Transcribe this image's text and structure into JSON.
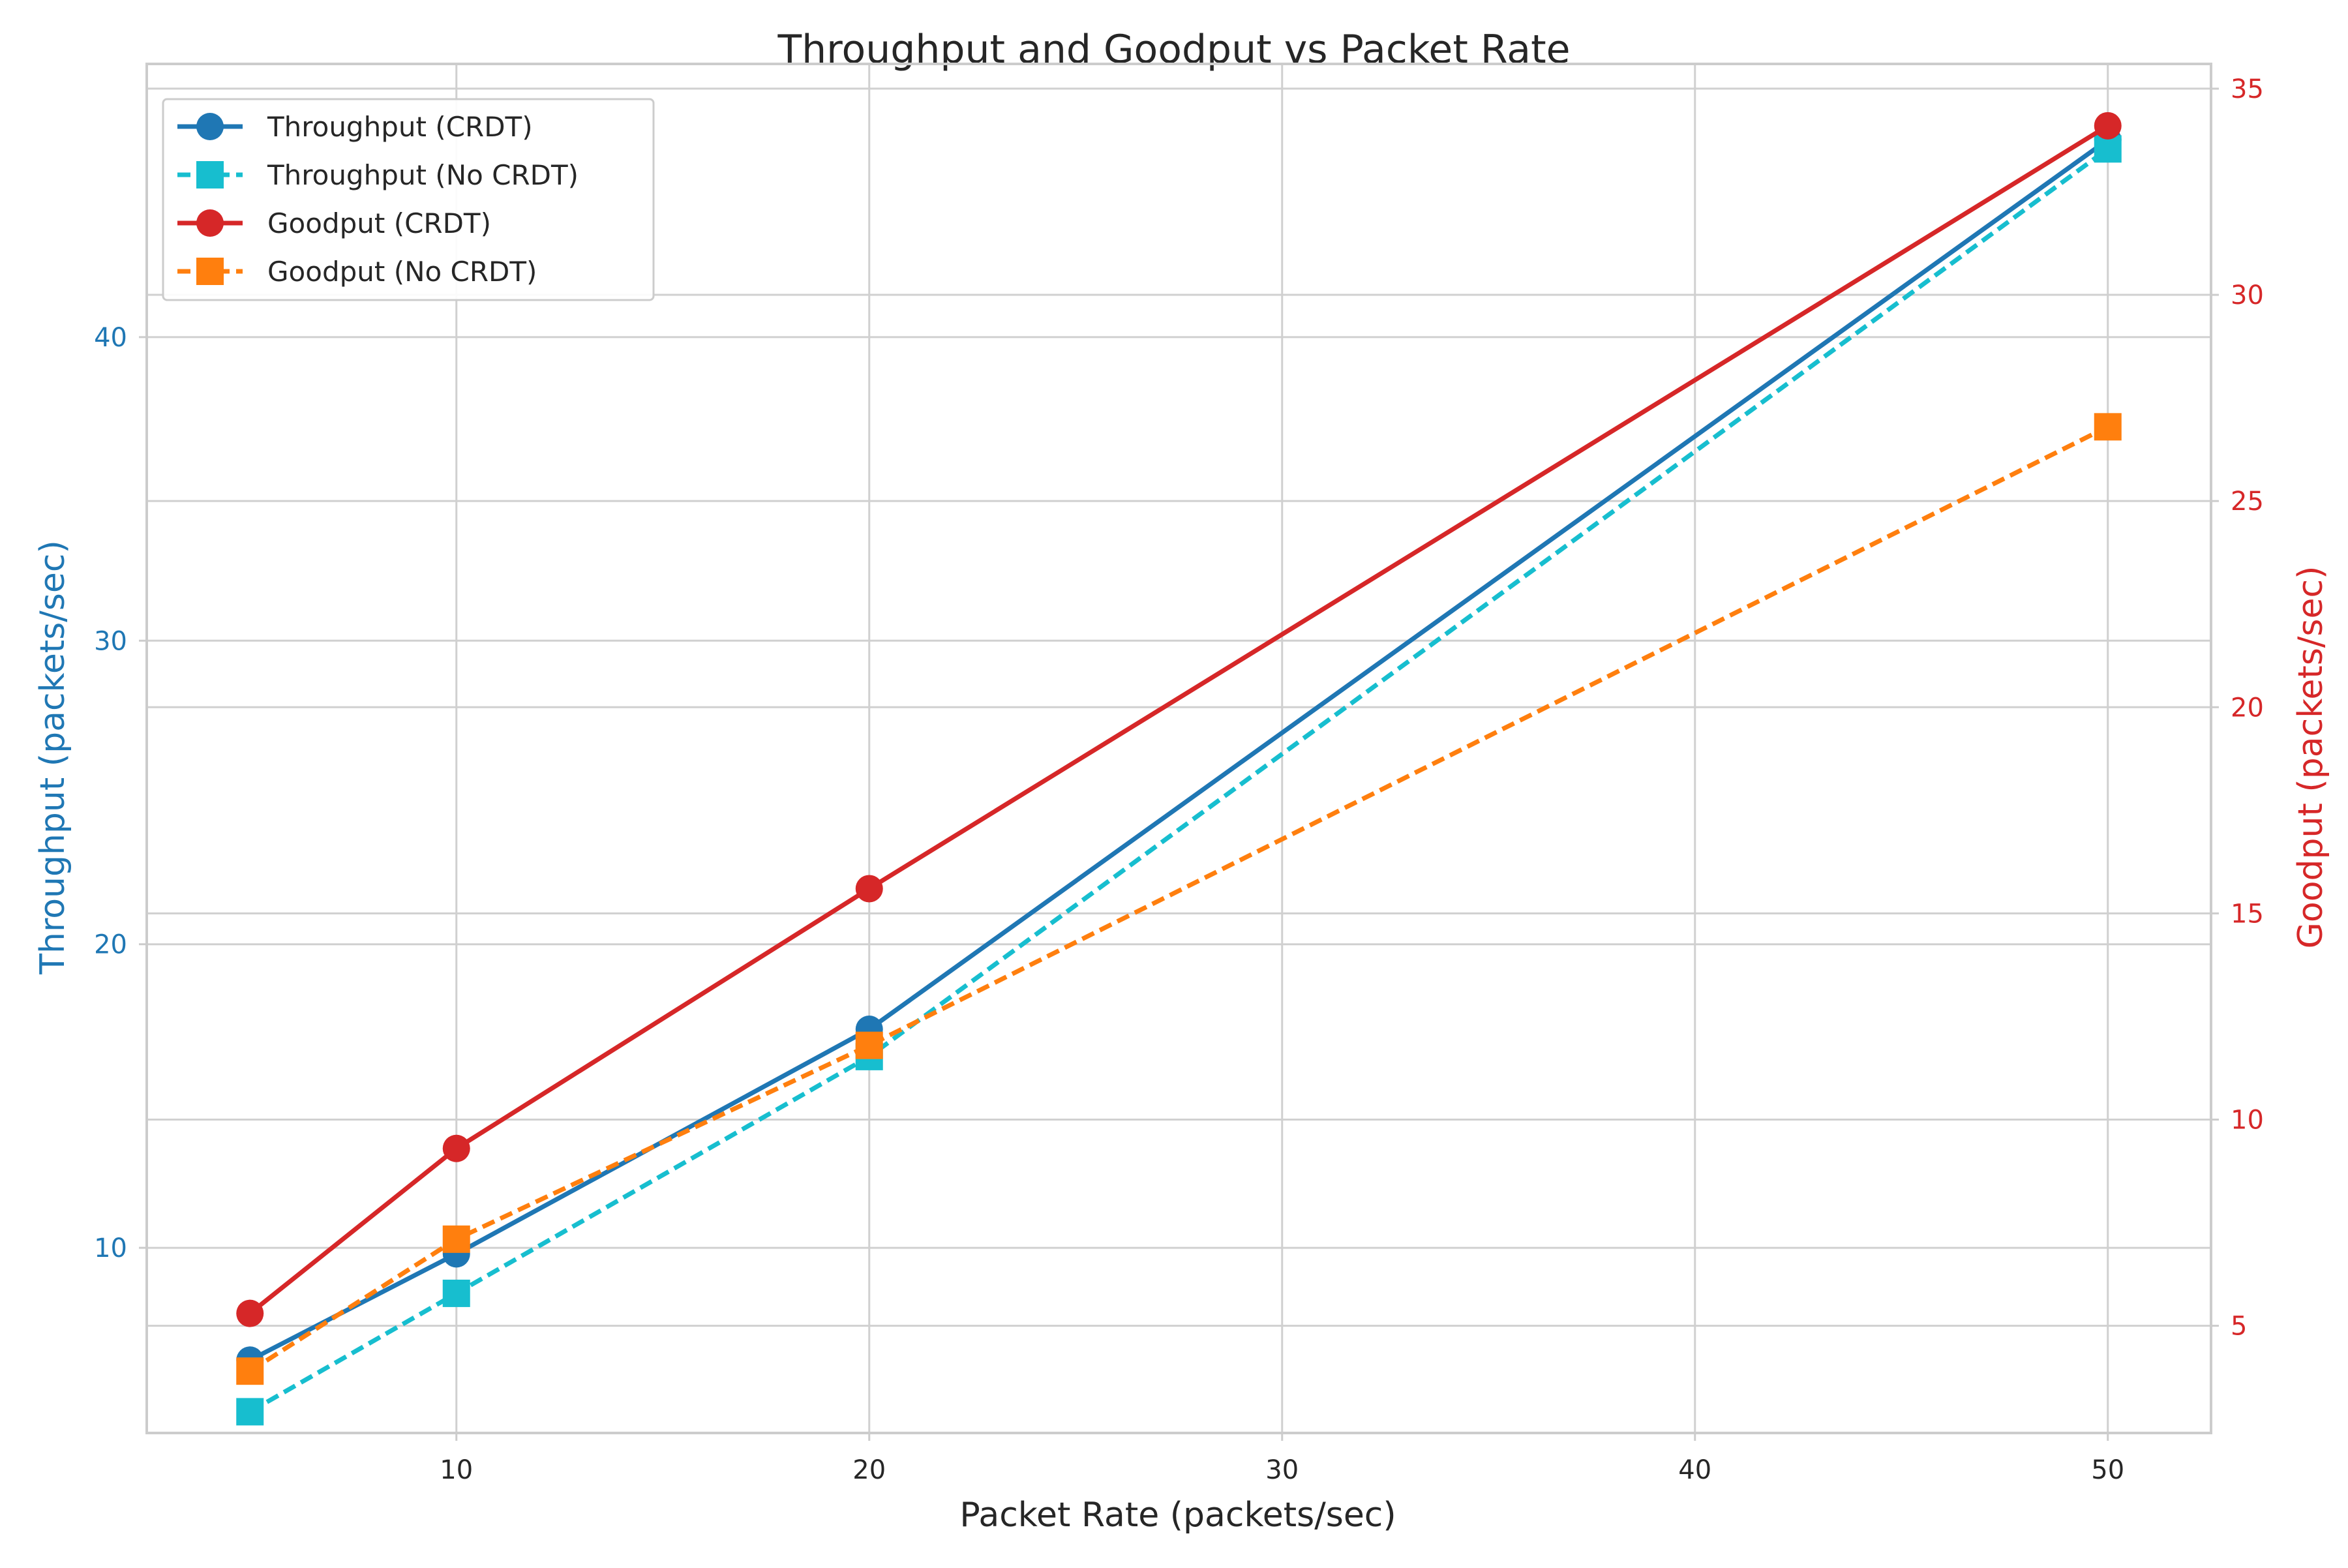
{
  "chart_data": {
    "type": "line",
    "title": "Throughput and Goodput vs Packet Rate",
    "xlabel": "Packet Rate (packets/sec)",
    "ylabel_left": "Throughput (packets/sec)",
    "ylabel_right": "Goodput (packets/sec)",
    "x": [
      5,
      10,
      20,
      50
    ],
    "xlim": [
      2.5,
      52.5
    ],
    "ylim_left": [
      3.9,
      49.0
    ],
    "ylim_right": [
      2.4,
      35.6
    ],
    "x_ticks": [
      10,
      20,
      30,
      40,
      50
    ],
    "y_ticks_left": [
      10,
      20,
      30,
      40
    ],
    "y_ticks_right": [
      5,
      10,
      15,
      20,
      25,
      30,
      35
    ],
    "grid": true,
    "legend_position": "top-left",
    "series": [
      {
        "name": "Throughput (CRDT)",
        "axis": "left",
        "values": [
          6.3,
          9.8,
          17.2,
          46.5
        ],
        "color": "#1f77b4",
        "dash": "solid",
        "marker": "circle"
      },
      {
        "name": "Throughput (No CRDT)",
        "axis": "left",
        "values": [
          4.6,
          8.5,
          16.3,
          46.2
        ],
        "color": "#17becf",
        "dash": "dashed",
        "marker": "square"
      },
      {
        "name": "Goodput (CRDT)",
        "axis": "right",
        "values": [
          5.3,
          9.3,
          15.6,
          34.1
        ],
        "color": "#d62728",
        "dash": "solid",
        "marker": "circle"
      },
      {
        "name": "Goodput (No CRDT)",
        "axis": "right",
        "values": [
          3.9,
          7.1,
          11.8,
          26.8
        ],
        "color": "#ff7f0e",
        "dash": "dashed",
        "marker": "square"
      }
    ],
    "colors": {
      "left_axis": "#1f77b4",
      "right_axis": "#d62728",
      "grid": "#d0d0d0",
      "spine": "#cccccc",
      "text": "#262626"
    }
  }
}
